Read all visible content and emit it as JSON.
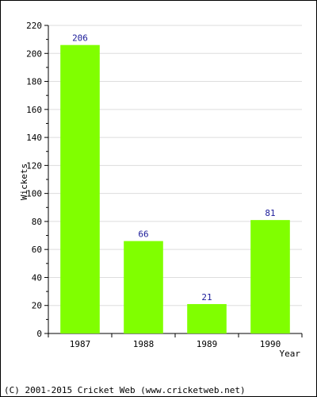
{
  "chart_data": {
    "type": "bar",
    "categories": [
      "1987",
      "1988",
      "1989",
      "1990"
    ],
    "values": [
      206,
      66,
      21,
      81
    ],
    "data_labels": [
      "206",
      "66",
      "21",
      "81"
    ],
    "title": "",
    "xlabel": "Year",
    "ylabel": "Wickets",
    "ylim": [
      0,
      220
    ],
    "yticks": [
      0,
      20,
      40,
      60,
      80,
      100,
      120,
      140,
      160,
      180,
      200,
      220
    ],
    "ytick_labels": [
      "0",
      "20",
      "40",
      "60",
      "80",
      "100",
      "120",
      "140",
      "160",
      "180",
      "200",
      "220"
    ],
    "grid": true,
    "legend": false,
    "bar_color": "#80ff00",
    "grid_color": "#dddddd"
  },
  "footer": {
    "copyright": "(C) 2001-2015 Cricket Web (www.cricketweb.net)"
  }
}
